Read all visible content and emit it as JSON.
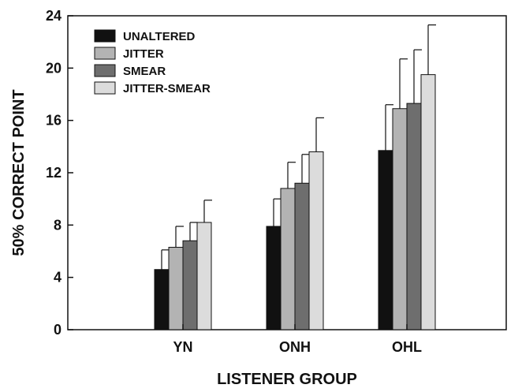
{
  "chart_data": {
    "type": "bar",
    "xlabel": "LISTENER GROUP",
    "ylabel": "50% CORRECT POINT",
    "ylim": [
      0,
      24
    ],
    "yticks": [
      0,
      4,
      8,
      12,
      16,
      20,
      24
    ],
    "categories": [
      "YN",
      "ONH",
      "OHL"
    ],
    "series": [
      {
        "name": "UNALTERED",
        "values": [
          4.6,
          7.9,
          13.7
        ],
        "error_upper": [
          1.5,
          2.1,
          3.5
        ],
        "color": "#111111"
      },
      {
        "name": "JITTER",
        "values": [
          6.3,
          10.8,
          16.9
        ],
        "error_upper": [
          1.6,
          2.0,
          3.8
        ],
        "color": "#b3b3b3"
      },
      {
        "name": "SMEAR",
        "values": [
          6.8,
          11.2,
          17.3
        ],
        "error_upper": [
          1.4,
          2.2,
          4.1
        ],
        "color": "#6e6e6e"
      },
      {
        "name": "JITTER-SMEAR",
        "values": [
          8.2,
          13.6,
          19.5
        ],
        "error_upper": [
          1.7,
          2.6,
          3.8
        ],
        "color": "#dcdcdc"
      }
    ],
    "grid": false,
    "legend_position": "top-left"
  }
}
